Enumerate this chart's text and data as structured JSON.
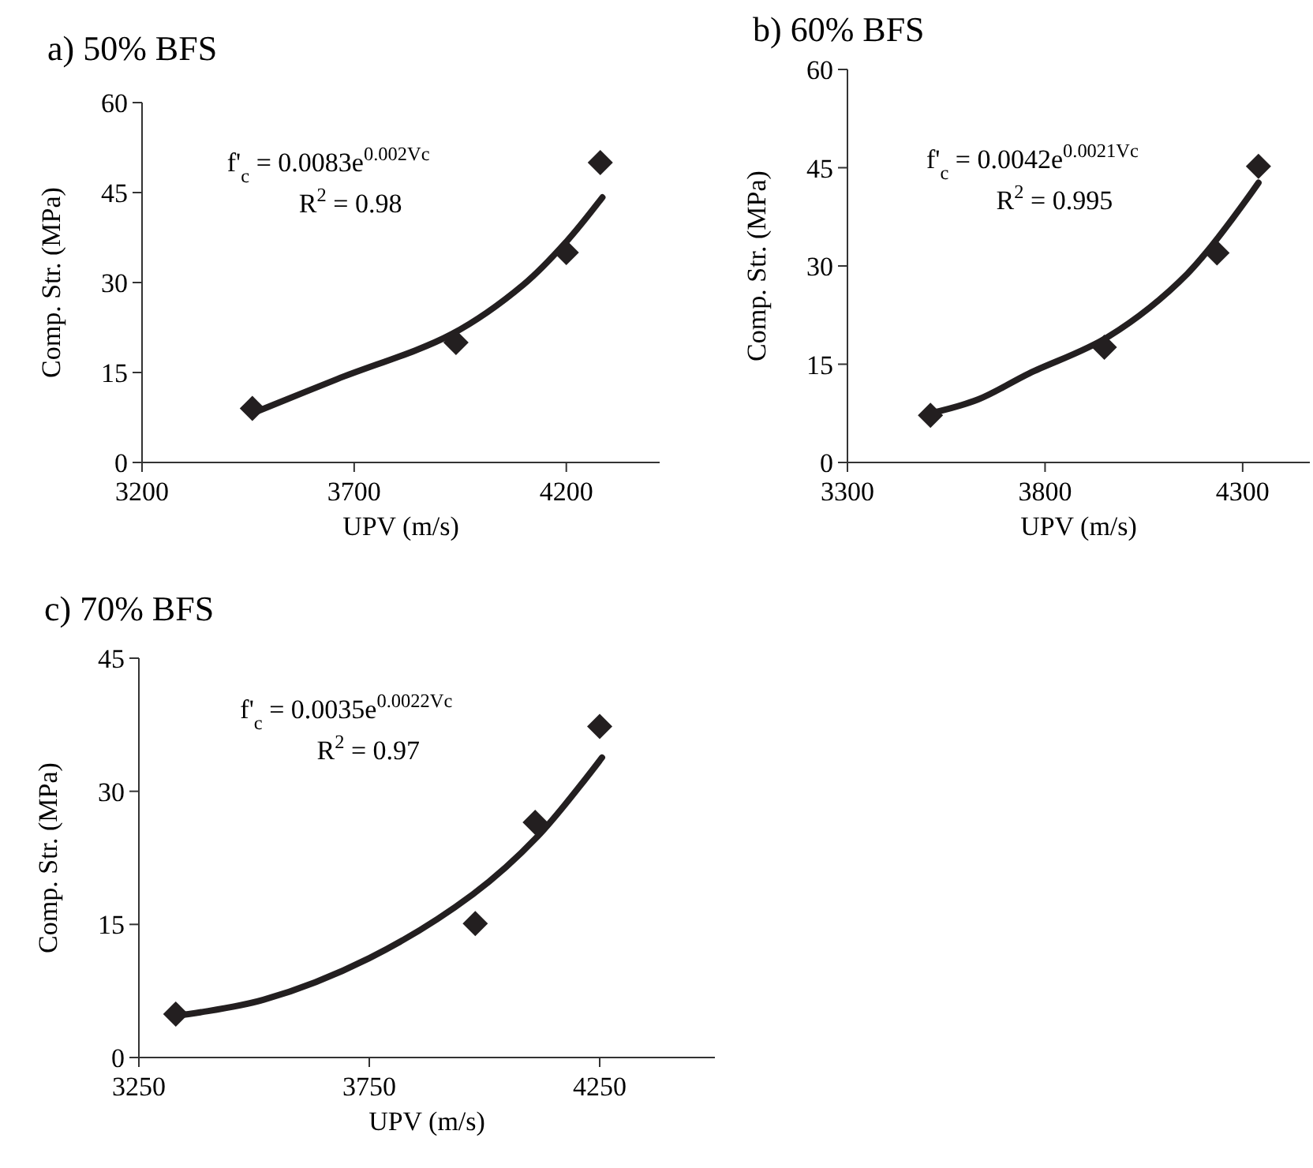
{
  "chart_data": [
    {
      "type": "scatter",
      "title": "a) 50% BFS",
      "xlabel": "UPV (m/s)",
      "ylabel": "Comp. Str. (MPa)",
      "xlim": [
        3200,
        4420
      ],
      "ylim": [
        0,
        60
      ],
      "xticks": [
        3200,
        3700,
        4200
      ],
      "yticks": [
        0,
        15,
        30,
        45,
        60
      ],
      "grid": false,
      "annotations": [
        "f'$_{c}$ = 0.0083e$^{0.002Vc}$",
        "R$^{2}$ = 0.98"
      ],
      "series": [
        {
          "marker": "diamond",
          "color": "#231f20",
          "x": [
            3460,
            3940,
            4200,
            4280
          ],
          "values": [
            9,
            20,
            35,
            50
          ]
        },
        {
          "type": "line",
          "marker": "none",
          "line_style": "solid",
          "color": "#231f20",
          "x": [
            3460,
            3660,
            3930,
            4100,
            4200,
            4285
          ],
          "values": [
            8.2,
            13.9,
            21.4,
            29.7,
            36.8,
            44.2
          ]
        }
      ]
    },
    {
      "type": "scatter",
      "title": "b) 60% BFS",
      "xlabel": "UPV (m/s)",
      "ylabel": "Comp. Str. (MPa)",
      "xlim": [
        3300,
        4470
      ],
      "ylim": [
        0,
        60
      ],
      "xticks": [
        3300,
        3800,
        4300
      ],
      "yticks": [
        0,
        15,
        30,
        45,
        60
      ],
      "grid": false,
      "annotations": [
        "f'$_{c}$ = 0.0042e$^{0.0021Vc}$",
        "R$^{2}$ = 0.995"
      ],
      "series": [
        {
          "marker": "diamond",
          "color": "#231f20",
          "x": [
            3510,
            3950,
            4235,
            4340
          ],
          "values": [
            7.2,
            17.6,
            32,
            45.2
          ]
        },
        {
          "type": "line",
          "marker": "none",
          "line_style": "solid",
          "color": "#231f20",
          "x": [
            3510,
            3630,
            3760,
            3960,
            4160,
            4340
          ],
          "values": [
            7.5,
            9.6,
            13.6,
            19.2,
            28.8,
            42.7
          ]
        }
      ]
    },
    {
      "type": "scatter",
      "title": "c) 70% BFS",
      "xlabel": "UPV (m/s)",
      "ylabel": "Comp. Str. (MPa)",
      "xlim": [
        3250,
        4500
      ],
      "ylim": [
        0,
        45
      ],
      "xticks": [
        3250,
        3750,
        4250
      ],
      "yticks": [
        0,
        15,
        30,
        45
      ],
      "grid": false,
      "annotations": [
        "f'$_{c}$ = 0.0035e$^{0.0022Vc}$",
        "R$^{2}$ = 0.97"
      ],
      "series": [
        {
          "marker": "diamond",
          "color": "#231f20",
          "x": [
            3330,
            3980,
            4110,
            4250
          ],
          "values": [
            4.9,
            15.1,
            26.5,
            37.3
          ]
        },
        {
          "type": "line",
          "marker": "none",
          "line_style": "solid",
          "color": "#231f20",
          "x": [
            3330,
            3520,
            3750,
            3975,
            4115,
            4255
          ],
          "values": [
            4.7,
            6.5,
            11.2,
            18.4,
            24.9,
            33.8
          ]
        }
      ]
    }
  ]
}
